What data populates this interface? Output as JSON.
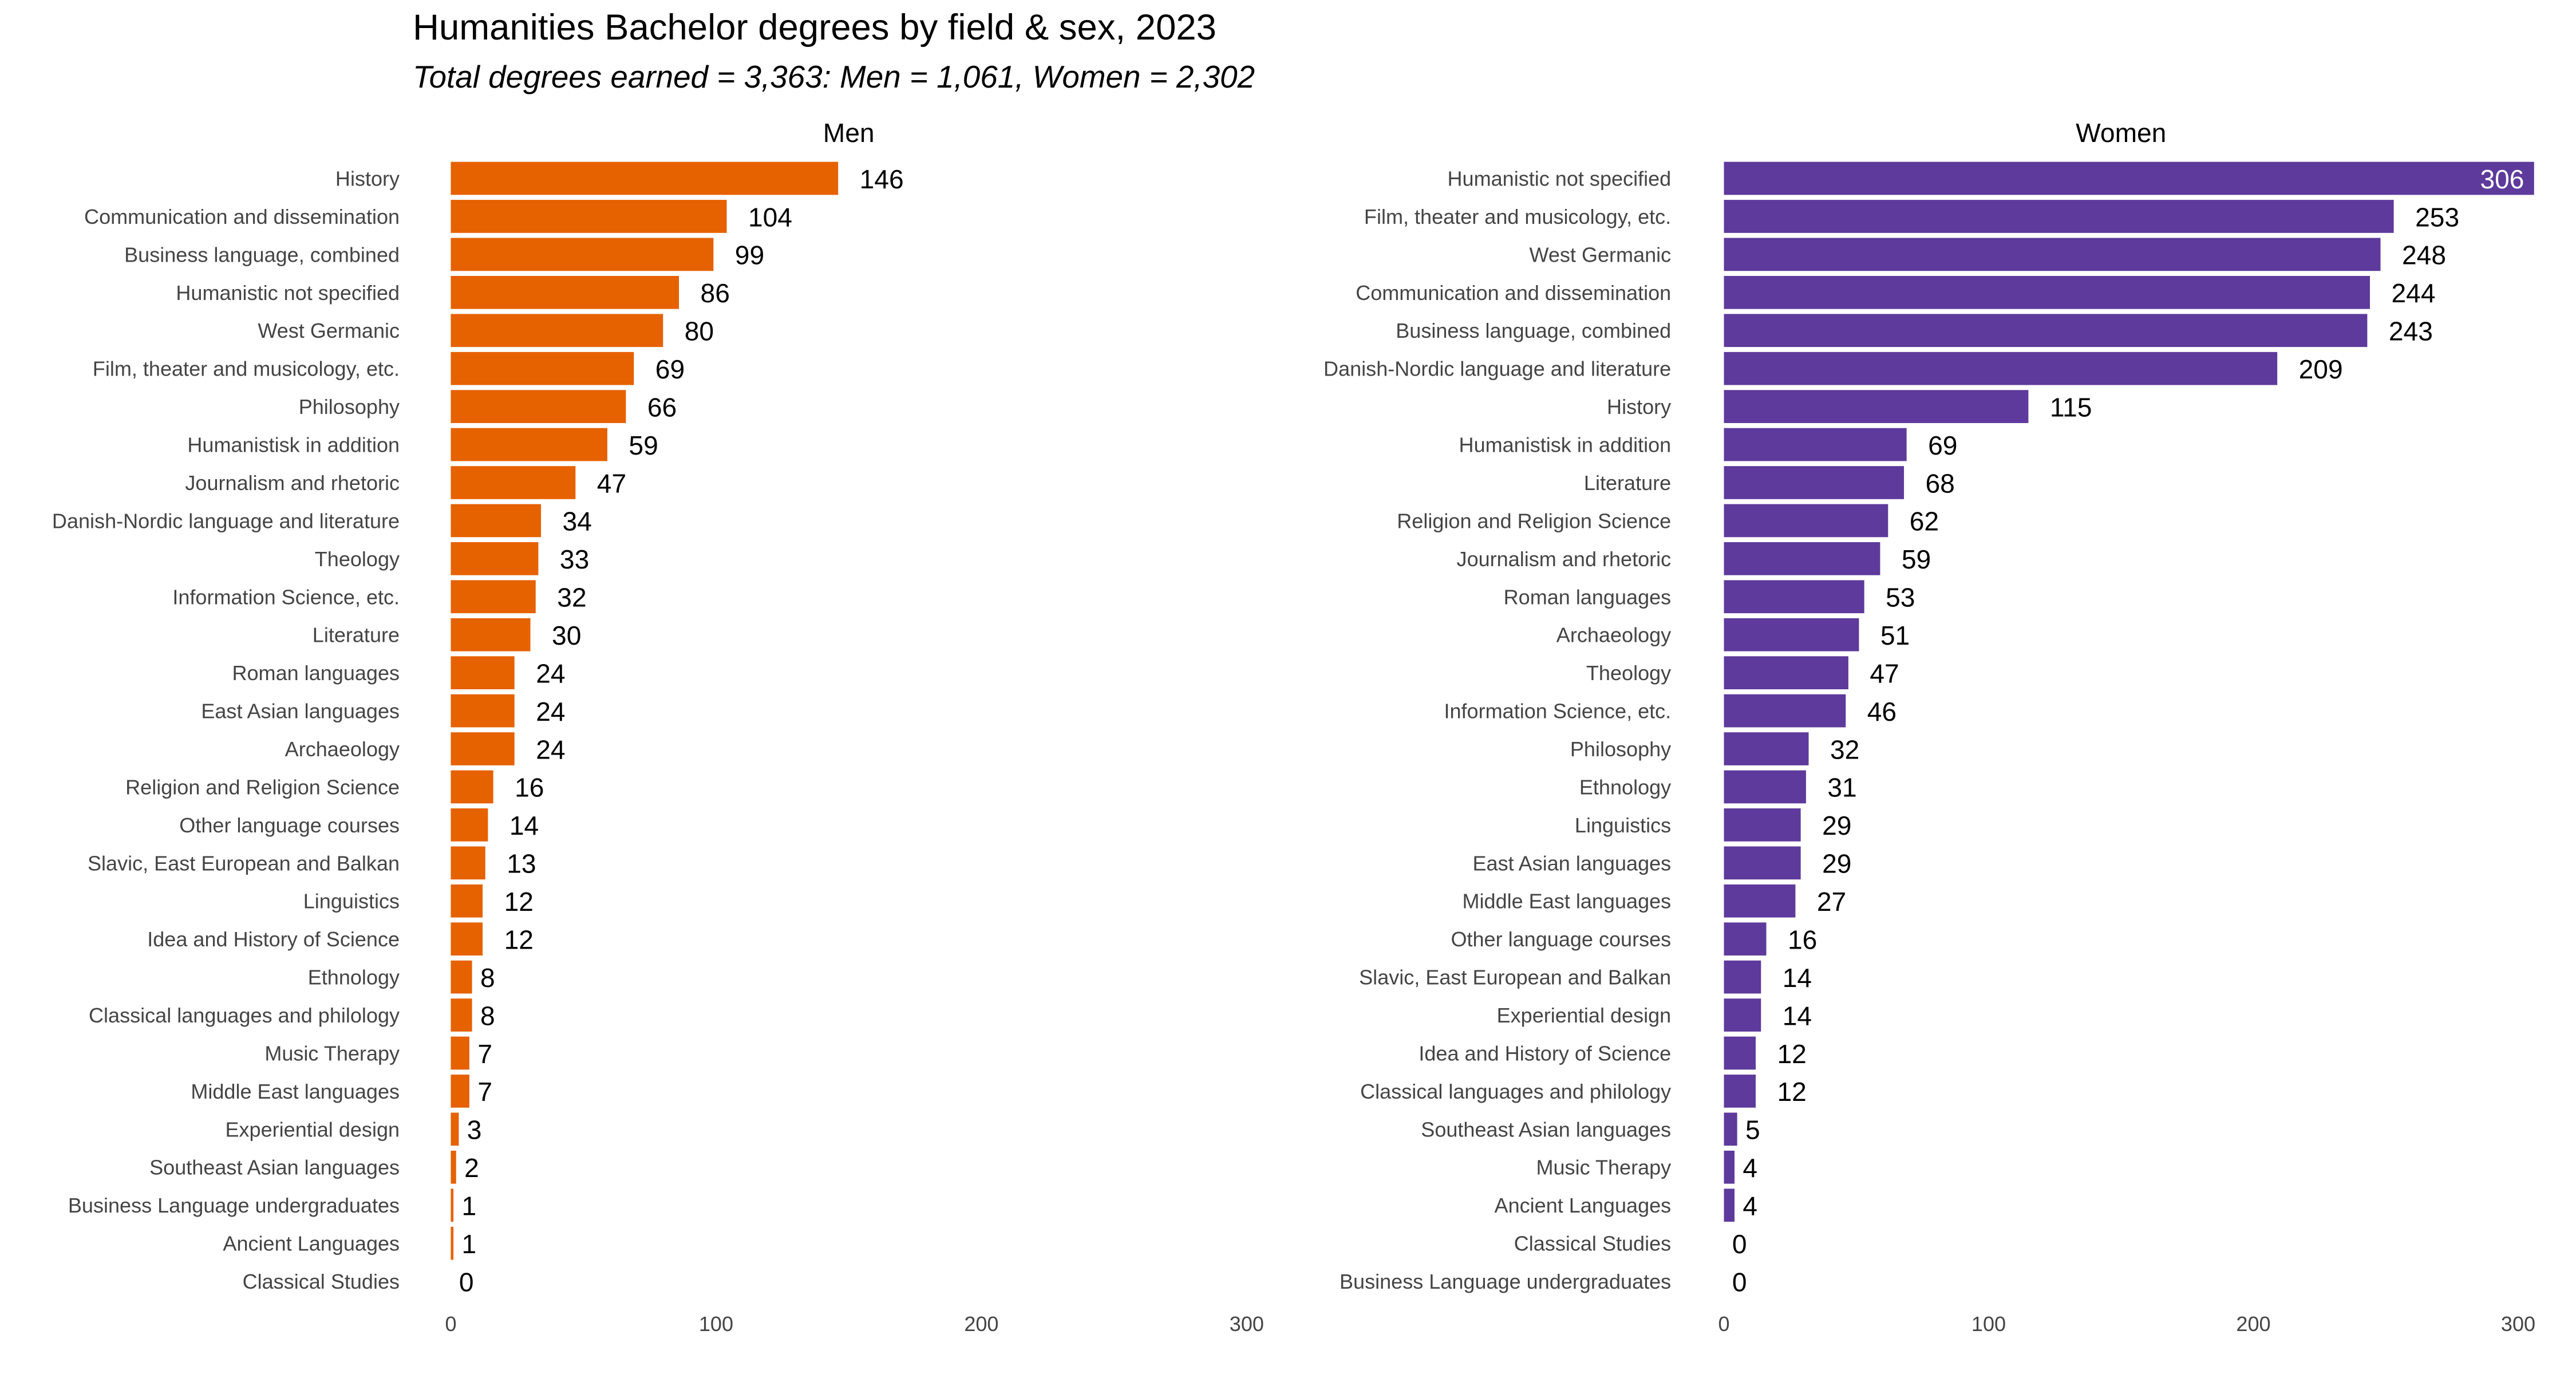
{
  "chart_data": [
    {
      "type": "bar",
      "orientation": "horizontal",
      "title": "Humanities Bachelor degrees by field & sex, 2023",
      "subtitle": "Total degrees earned = 3,363: Men = 1,061, Women = 2,302",
      "facet": "Men",
      "color": "#E66100",
      "xlim": [
        0,
        300
      ],
      "xticks": [
        0,
        100,
        200,
        300
      ],
      "grid": false,
      "categories": [
        "History",
        "Communication and dissemination",
        "Business language, combined",
        "Humanistic not specified",
        "West Germanic",
        "Film, theater and musicology, etc.",
        "Philosophy",
        "Humanistisk in addition",
        "Journalism and rhetoric",
        "Danish-Nordic language and literature",
        "Theology",
        "Information Science, etc.",
        "Literature",
        "Roman languages",
        "East Asian languages",
        "Archaeology",
        "Religion and Religion Science",
        "Other language courses",
        "Slavic, East European and Balkan",
        "Linguistics",
        "Idea and History of Science",
        "Ethnology",
        "Classical languages and philology",
        "Music Therapy",
        "Middle East languages",
        "Experiential design",
        "Southeast Asian languages",
        "Business Language undergraduates",
        "Ancient Languages",
        "Classical Studies"
      ],
      "values": [
        146,
        104,
        99,
        86,
        80,
        69,
        66,
        59,
        47,
        34,
        33,
        32,
        30,
        24,
        24,
        24,
        16,
        14,
        13,
        12,
        12,
        8,
        8,
        7,
        7,
        3,
        2,
        1,
        1,
        0
      ]
    },
    {
      "type": "bar",
      "orientation": "horizontal",
      "facet": "Women",
      "color": "#5D3A9B",
      "xlim": [
        0,
        300
      ],
      "xticks": [
        0,
        100,
        200,
        300
      ],
      "grid": false,
      "categories": [
        "Humanistic not specified",
        "Film, theater and musicology, etc.",
        "West Germanic",
        "Communication and dissemination",
        "Business language, combined",
        "Danish-Nordic language and literature",
        "History",
        "Humanistisk in addition",
        "Literature",
        "Religion and Religion Science",
        "Journalism and rhetoric",
        "Roman languages",
        "Archaeology",
        "Theology",
        "Information Science, etc.",
        "Philosophy",
        "Ethnology",
        "Linguistics",
        "East Asian languages",
        "Middle East languages",
        "Other language courses",
        "Slavic, East European and Balkan",
        "Experiential design",
        "Idea and History of Science",
        "Classical languages and philology",
        "Southeast Asian languages",
        "Music Therapy",
        "Ancient Languages",
        "Classical Studies",
        "Business Language undergraduates"
      ],
      "values": [
        306,
        253,
        248,
        244,
        243,
        209,
        115,
        69,
        68,
        62,
        59,
        53,
        51,
        47,
        46,
        32,
        31,
        29,
        29,
        27,
        16,
        14,
        14,
        12,
        12,
        5,
        4,
        4,
        0,
        0
      ]
    }
  ]
}
